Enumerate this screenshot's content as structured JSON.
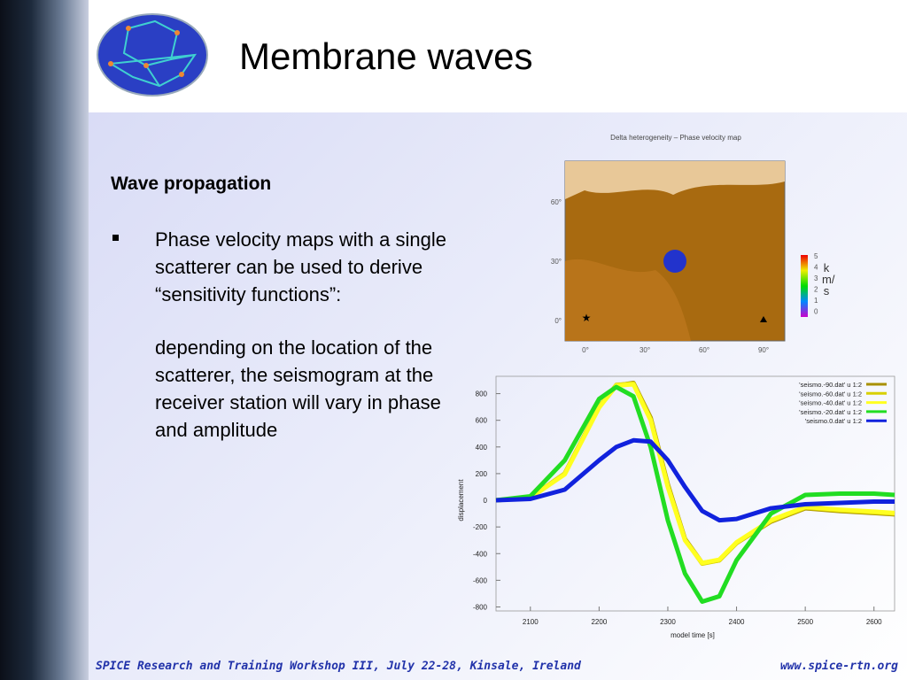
{
  "header": {
    "title": "Membrane waves"
  },
  "body": {
    "heading": "Wave propagation",
    "bullet": "Phase velocity maps with a single scatterer can be used to derive “sensitivity functions”:",
    "detail": "depending on the location of the scatterer, the seismogram at the receiver station will vary in phase and amplitude"
  },
  "map": {
    "title": "Delta heterogeneity – Phase velocity map",
    "lat_labels": [
      "60°",
      "30°",
      "0°"
    ],
    "lon_labels": [
      "0°",
      "30°",
      "60°",
      "90°"
    ],
    "colorbar_labels": [
      "5",
      "4",
      "3",
      "2",
      "1",
      "0"
    ],
    "unit": "km/s"
  },
  "footer": {
    "left": "SPICE Research and Training Workshop III, July 22-28, Kinsale, Ireland",
    "right": "www.spice-rtn.org"
  },
  "chart_data": {
    "type": "line",
    "ylabel": "displacement",
    "xlabel": "model time [s]",
    "x": [
      2050,
      2100,
      2150,
      2200,
      2225,
      2250,
      2275,
      2300,
      2325,
      2350,
      2375,
      2400,
      2450,
      2500,
      2550,
      2600,
      2630
    ],
    "xlim": [
      2050,
      2630
    ],
    "xticks": [
      2100,
      2200,
      2300,
      2400,
      2500,
      2600
    ],
    "ylim": [
      -830,
      930
    ],
    "yticks": [
      800,
      600,
      400,
      200,
      0,
      -200,
      -400,
      -600,
      -800
    ],
    "series": [
      {
        "name": "'seismo.-90.dat' u 1:2",
        "color": "#a89000",
        "values": [
          0,
          20,
          200,
          700,
          860,
          880,
          620,
          120,
          -290,
          -470,
          -450,
          -320,
          -160,
          -60,
          -80,
          -95,
          -105
        ]
      },
      {
        "name": "'seismo.-60.dat' u 1:2",
        "color": "#d8d000",
        "values": [
          0,
          20,
          200,
          700,
          865,
          875,
          610,
          110,
          -295,
          -475,
          -450,
          -320,
          -155,
          -55,
          -75,
          -90,
          -100
        ]
      },
      {
        "name": "'seismo.-40.dat' u 1:2",
        "color": "#ffff20",
        "values": [
          0,
          20,
          195,
          695,
          860,
          870,
          600,
          100,
          -300,
          -470,
          -445,
          -315,
          -150,
          -50,
          -70,
          -85,
          -95
        ]
      },
      {
        "name": "'seismo.-20.dat' u 1:2",
        "color": "#22dd22",
        "values": [
          0,
          30,
          300,
          760,
          850,
          780,
          400,
          -150,
          -550,
          -760,
          -720,
          -450,
          -100,
          40,
          50,
          50,
          40
        ]
      },
      {
        "name": "'seismo.0.dat' u 1:2",
        "color": "#1122dd",
        "values": [
          0,
          10,
          80,
          300,
          400,
          450,
          440,
          300,
          100,
          -80,
          -150,
          -140,
          -60,
          -30,
          -20,
          -10,
          -10
        ]
      }
    ]
  }
}
